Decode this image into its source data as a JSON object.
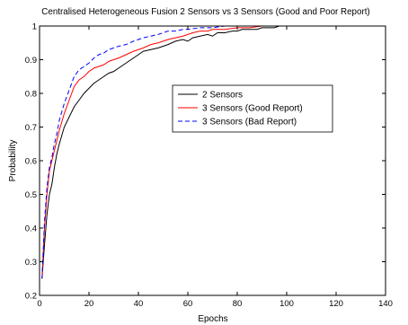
{
  "chart_data": {
    "type": "line",
    "title": "Centralised Heterogeneous Fusion 2 Sensors vs 3 Sensors (Good and Poor Report)",
    "xlabel": "Epochs",
    "ylabel": "Probability",
    "xlim": [
      0,
      140
    ],
    "ylim": [
      0.2,
      1
    ],
    "xticks": [
      "0",
      "20",
      "40",
      "60",
      "80",
      "100",
      "120",
      "140"
    ],
    "yticks": [
      "0.2",
      "0.3",
      "0.4",
      "0.5",
      "0.6",
      "0.7",
      "0.8",
      "0.9",
      "1"
    ],
    "grid": false,
    "legend_position": "center-right",
    "series": [
      {
        "name": "2 Sensors",
        "color": "#000000",
        "style": "solid",
        "x": [
          1,
          2,
          3,
          4,
          5,
          6,
          7,
          8,
          10,
          12,
          14,
          16,
          18,
          20,
          22,
          24,
          26,
          28,
          30,
          32,
          35,
          38,
          40,
          42,
          45,
          48,
          50,
          52,
          55,
          58,
          60,
          62,
          65,
          68,
          70,
          72,
          75,
          78,
          80,
          82,
          85,
          88,
          90,
          93,
          95,
          97,
          100,
          105,
          110,
          115,
          120
        ],
        "y": [
          0.25,
          0.35,
          0.44,
          0.5,
          0.53,
          0.58,
          0.62,
          0.65,
          0.7,
          0.73,
          0.76,
          0.78,
          0.8,
          0.815,
          0.83,
          0.84,
          0.85,
          0.86,
          0.865,
          0.875,
          0.89,
          0.905,
          0.915,
          0.925,
          0.93,
          0.935,
          0.94,
          0.945,
          0.955,
          0.96,
          0.955,
          0.965,
          0.97,
          0.975,
          0.97,
          0.98,
          0.98,
          0.985,
          0.985,
          0.99,
          0.99,
          0.99,
          0.995,
          0.995,
          0.995,
          1.0,
          1.0,
          1.0,
          1.0,
          1.0,
          1.0
        ]
      },
      {
        "name": "3 Sensors (Good Report)",
        "color": "#ff0000",
        "style": "solid",
        "x": [
          1,
          2,
          3,
          4,
          5,
          6,
          7,
          8,
          10,
          12,
          14,
          16,
          18,
          20,
          22,
          24,
          26,
          28,
          30,
          32,
          35,
          38,
          40,
          42,
          45,
          48,
          50,
          52,
          55,
          58,
          60,
          62,
          65,
          68,
          70,
          75,
          80,
          85,
          90,
          95,
          100,
          110,
          120
        ],
        "y": [
          0.25,
          0.4,
          0.5,
          0.57,
          0.6,
          0.63,
          0.66,
          0.69,
          0.74,
          0.78,
          0.82,
          0.84,
          0.85,
          0.865,
          0.875,
          0.88,
          0.885,
          0.895,
          0.9,
          0.905,
          0.915,
          0.925,
          0.93,
          0.935,
          0.945,
          0.95,
          0.955,
          0.96,
          0.965,
          0.97,
          0.975,
          0.98,
          0.985,
          0.985,
          0.99,
          0.99,
          0.995,
          0.995,
          1.0,
          1.0,
          1.0,
          1.0,
          1.0
        ]
      },
      {
        "name": "3 Sensors (Bad Report)",
        "color": "#0000ff",
        "style": "dashed",
        "x": [
          1,
          2,
          3,
          4,
          5,
          6,
          7,
          8,
          10,
          12,
          14,
          16,
          18,
          20,
          22,
          24,
          26,
          28,
          30,
          32,
          35,
          38,
          40,
          42,
          45,
          48,
          50,
          52,
          55,
          58,
          60,
          65,
          70,
          75,
          80,
          90,
          100,
          110,
          120
        ],
        "y": [
          0.25,
          0.42,
          0.52,
          0.58,
          0.61,
          0.65,
          0.68,
          0.72,
          0.77,
          0.81,
          0.85,
          0.87,
          0.88,
          0.89,
          0.905,
          0.915,
          0.92,
          0.93,
          0.935,
          0.94,
          0.945,
          0.955,
          0.96,
          0.965,
          0.97,
          0.975,
          0.98,
          0.985,
          0.985,
          0.99,
          0.99,
          0.995,
          0.995,
          1.0,
          1.0,
          1.0,
          1.0,
          1.0,
          1.0
        ]
      }
    ]
  }
}
